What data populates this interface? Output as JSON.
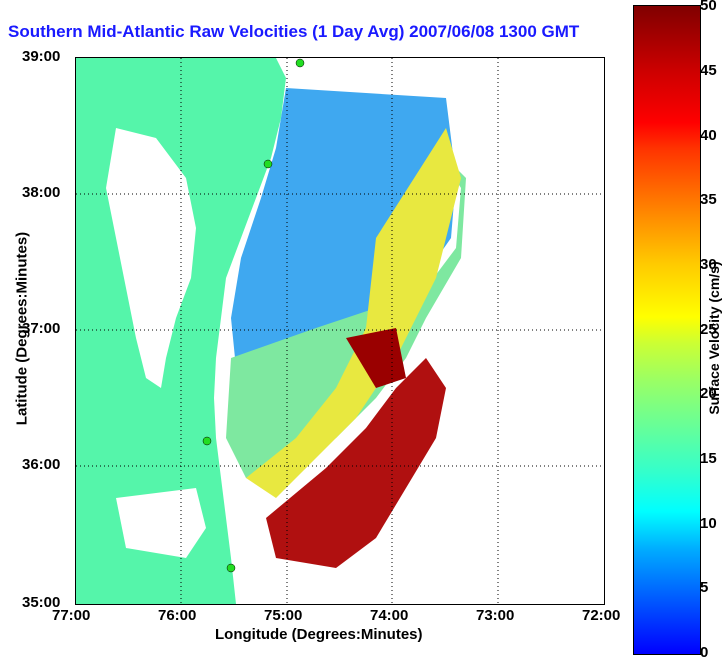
{
  "title": "Southern Mid-Atlantic Raw Velocities (1 Day Avg) 2007/06/08 1300 GMT",
  "x_axis": {
    "label": "Longitude (Degrees:Minutes)",
    "ticks": [
      "77:00",
      "76:00",
      "75:00",
      "74:00",
      "73:00",
      "72:00"
    ]
  },
  "y_axis": {
    "label": "Latitude (Degrees:Minutes)",
    "ticks": [
      "39:00",
      "38:00",
      "37:00",
      "36:00",
      "35:00"
    ]
  },
  "colorbar": {
    "label": "Surface Velocity (cm/s)",
    "ticks": [
      "50",
      "45",
      "40",
      "35",
      "30",
      "25",
      "20",
      "15",
      "10",
      "5",
      "0"
    ],
    "min": 0,
    "max": 50
  },
  "colors": {
    "title": "#1a1aff",
    "land": "#55f5aa",
    "low_velocity": "#0080ff",
    "high_velocity": "#800000"
  }
}
